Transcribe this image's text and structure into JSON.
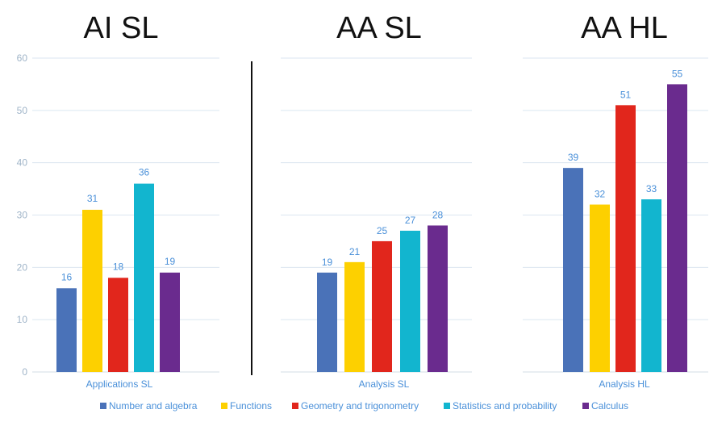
{
  "chart_data": {
    "type": "bar",
    "y_ticks": [
      "0",
      "10",
      "20",
      "30",
      "40",
      "50",
      "60"
    ],
    "ylim": [
      0,
      60
    ],
    "series": [
      {
        "name": "Number and algebra",
        "color": "#4a72b8"
      },
      {
        "name": "Functions",
        "color": "#fdd000"
      },
      {
        "name": "Geometry and trigonometry",
        "color": "#e1261c"
      },
      {
        "name": "Statistics and probability",
        "color": "#12b5cf"
      },
      {
        "name": "Calculus",
        "color": "#6a2b8e"
      }
    ],
    "groups": [
      {
        "title": "AI SL",
        "category": "Applications SL",
        "values": [
          16,
          31,
          18,
          36,
          19
        ]
      },
      {
        "title": "AA SL",
        "category": "Analysis SL",
        "values": [
          19,
          21,
          25,
          27,
          28
        ]
      },
      {
        "title": "AA HL",
        "category": "Analysis HL",
        "values": [
          39,
          32,
          51,
          33,
          55
        ]
      }
    ]
  }
}
